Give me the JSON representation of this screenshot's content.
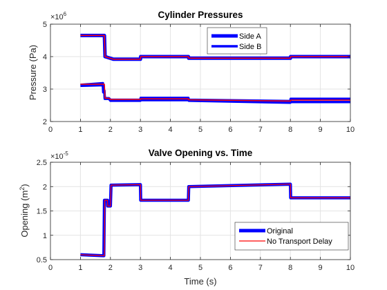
{
  "figure": {
    "background": "#ffffff",
    "axes_color": "#262626",
    "grid_color": "#e3e3e3"
  },
  "chart_data": [
    {
      "type": "line",
      "title": "Cylinder Pressures",
      "xlabel": "",
      "ylabel": "Pressure (Pa)",
      "exponent_label": "×10^6",
      "exponent_base": "×10",
      "exponent_power": "6",
      "xlim": [
        0,
        10
      ],
      "ylim": [
        2,
        5
      ],
      "xticks": [
        0,
        1,
        2,
        3,
        4,
        5,
        6,
        7,
        8,
        9,
        10
      ],
      "yticks": [
        2,
        3,
        4,
        5
      ],
      "grid": true,
      "legend_position": "top-center",
      "legend": [
        {
          "label": "Side A",
          "color": "#0000ff",
          "style": "thick"
        },
        {
          "label": "Side B",
          "color": "#0000ff",
          "style": "medium"
        }
      ],
      "series": [
        {
          "name": "Side A",
          "color": "#0000ff",
          "width": 5,
          "x": [
            1,
            1.8,
            1.82,
            2.1,
            3.0,
            3.01,
            4.6,
            4.61,
            8.0,
            8.01,
            10
          ],
          "y": [
            4.65,
            4.65,
            4.0,
            3.92,
            3.92,
            4.0,
            4.0,
            3.95,
            3.95,
            4.0,
            4.0
          ]
        },
        {
          "name": "",
          "color": "#ff0000",
          "width": 1.5,
          "x": [
            1,
            1.8,
            1.82,
            2.1,
            3.0,
            3.01,
            4.6,
            4.61,
            8.0,
            8.01,
            10
          ],
          "y": [
            4.65,
            4.65,
            4.0,
            3.92,
            3.92,
            4.0,
            4.0,
            3.95,
            3.95,
            4.0,
            4.0
          ]
        },
        {
          "name": "Side B",
          "color": "#0000ff",
          "width": 3.5,
          "x": [
            1,
            1.75,
            1.76,
            1.8,
            1.81,
            1.95,
            2.0,
            3.0,
            3.01,
            4.6,
            4.61,
            8.0,
            8.01,
            10
          ],
          "y": [
            3.13,
            3.18,
            2.95,
            2.95,
            2.72,
            2.72,
            2.67,
            2.67,
            2.73,
            2.73,
            2.67,
            2.63,
            2.7,
            2.7
          ]
        },
        {
          "name": "",
          "color": "#0000ff",
          "width": 3.5,
          "x": [
            1,
            1.75,
            1.76,
            1.8,
            1.81,
            1.95,
            2.0,
            3.0,
            3.01,
            4.6,
            4.61,
            8.0,
            8.01,
            10
          ],
          "y": [
            3.1,
            3.12,
            2.9,
            2.9,
            2.7,
            2.7,
            2.64,
            2.64,
            2.66,
            2.66,
            2.64,
            2.58,
            2.6,
            2.6
          ]
        },
        {
          "name": "",
          "color": "#ff0000",
          "width": 1.5,
          "x": [
            1,
            1.8,
            1.82,
            1.95,
            2.0,
            3.0,
            3.01,
            4.6,
            4.61,
            8.0,
            8.01,
            10
          ],
          "y": [
            3.15,
            3.15,
            2.72,
            2.72,
            2.68,
            2.68,
            2.7,
            2.7,
            2.67,
            2.63,
            2.66,
            2.66
          ]
        }
      ]
    },
    {
      "type": "line",
      "title": "Valve Opening vs. Time",
      "xlabel": "Time (s)",
      "ylabel": "Opening (m^2)",
      "ylabel_base": "Opening (m",
      "ylabel_power": "2",
      "ylabel_close": ")",
      "exponent_label": "×10^-5",
      "exponent_base": "×10",
      "exponent_power": "-5",
      "xlim": [
        0,
        10
      ],
      "ylim": [
        0.5,
        2.5
      ],
      "xticks": [
        0,
        1,
        2,
        3,
        4,
        5,
        6,
        7,
        8,
        9,
        10
      ],
      "yticks": [
        0.5,
        1,
        1.5,
        2,
        2.5
      ],
      "grid": true,
      "legend_position": "bottom-right",
      "legend": [
        {
          "label": "Original",
          "color": "#0000ff",
          "style": "thick"
        },
        {
          "label": "No Transport Delay",
          "color": "#ff0000",
          "style": "thin"
        }
      ],
      "series": [
        {
          "name": "Original",
          "color": "#0000ff",
          "width": 4.5,
          "x": [
            1,
            1.78,
            1.8,
            1.9,
            1.91,
            2.0,
            2.02,
            3.0,
            3.01,
            4.6,
            4.61,
            8.0,
            8.01,
            10
          ],
          "y": [
            0.6,
            0.58,
            1.72,
            1.72,
            1.6,
            1.6,
            2.03,
            2.04,
            1.72,
            1.72,
            2.0,
            2.05,
            1.77,
            1.77
          ]
        },
        {
          "name": "No Transport Delay",
          "color": "#ff0000",
          "width": 1.2,
          "x": [
            1,
            1.8,
            1.81,
            1.9,
            1.91,
            2.0,
            2.02,
            3.0,
            3.01,
            4.6,
            4.61,
            8.0,
            8.01,
            10
          ],
          "y": [
            0.6,
            0.58,
            1.72,
            1.72,
            1.6,
            1.6,
            2.03,
            2.04,
            1.72,
            1.72,
            2.0,
            2.05,
            1.77,
            1.77
          ]
        }
      ]
    }
  ]
}
